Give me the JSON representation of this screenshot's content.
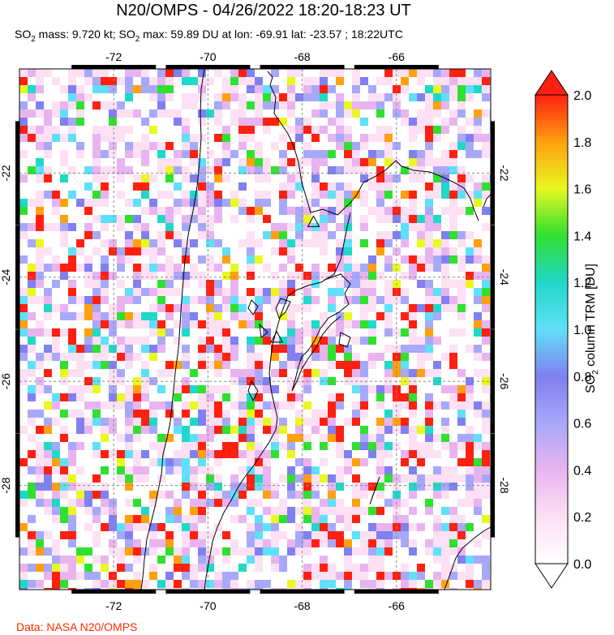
{
  "header": {
    "title": "N20/OMPS - 04/26/2022 18:20-18:23 UT",
    "subtitle_so2_a": "SO",
    "subtitle_sub": "2",
    "subtitle_mass": " mass: 9.720 kt; SO",
    "subtitle_rest": " max: 59.89 DU at lon: -69.91 lat: -23.57 ; 18:22UTC"
  },
  "map": {
    "lon_range": [
      -74.0,
      -64.0
    ],
    "lat_range": [
      -30.0,
      -20.0
    ],
    "lon_ticks": [
      {
        "value": -72,
        "label": "-72"
      },
      {
        "value": -70,
        "label": "-70"
      },
      {
        "value": -68,
        "label": "-68"
      },
      {
        "value": -66,
        "label": "-66"
      }
    ],
    "lat_ticks": [
      {
        "value": -22,
        "label": "-22"
      },
      {
        "value": -24,
        "label": "-24"
      },
      {
        "value": -26,
        "label": "-26"
      },
      {
        "value": -28,
        "label": "-28"
      }
    ],
    "grid": "dashed",
    "volcano_markers": [
      {
        "lon": -67.76,
        "lat": -22.95
      },
      {
        "lon": -68.54,
        "lat": -25.17
      }
    ]
  },
  "colorbar": {
    "label_prefix": "SO",
    "label_sub": "2",
    "label_suffix": " column TRM [DU]",
    "min": 0.0,
    "max": 2.0,
    "ticks": [
      "0.0",
      "0.2",
      "0.4",
      "0.6",
      "0.8",
      "1.0",
      "1.2",
      "1.4",
      "1.6",
      "1.8",
      "2.0"
    ],
    "colors": [
      "#ffffff",
      "#fde0f4",
      "#e8b4f0",
      "#a8a8f8",
      "#8080f0",
      "#60e0f8",
      "#20d8c8",
      "#30e030",
      "#e8f820",
      "#ffa010",
      "#ff2010"
    ]
  },
  "footer": {
    "source": "Data: NASA N20/OMPS"
  }
}
